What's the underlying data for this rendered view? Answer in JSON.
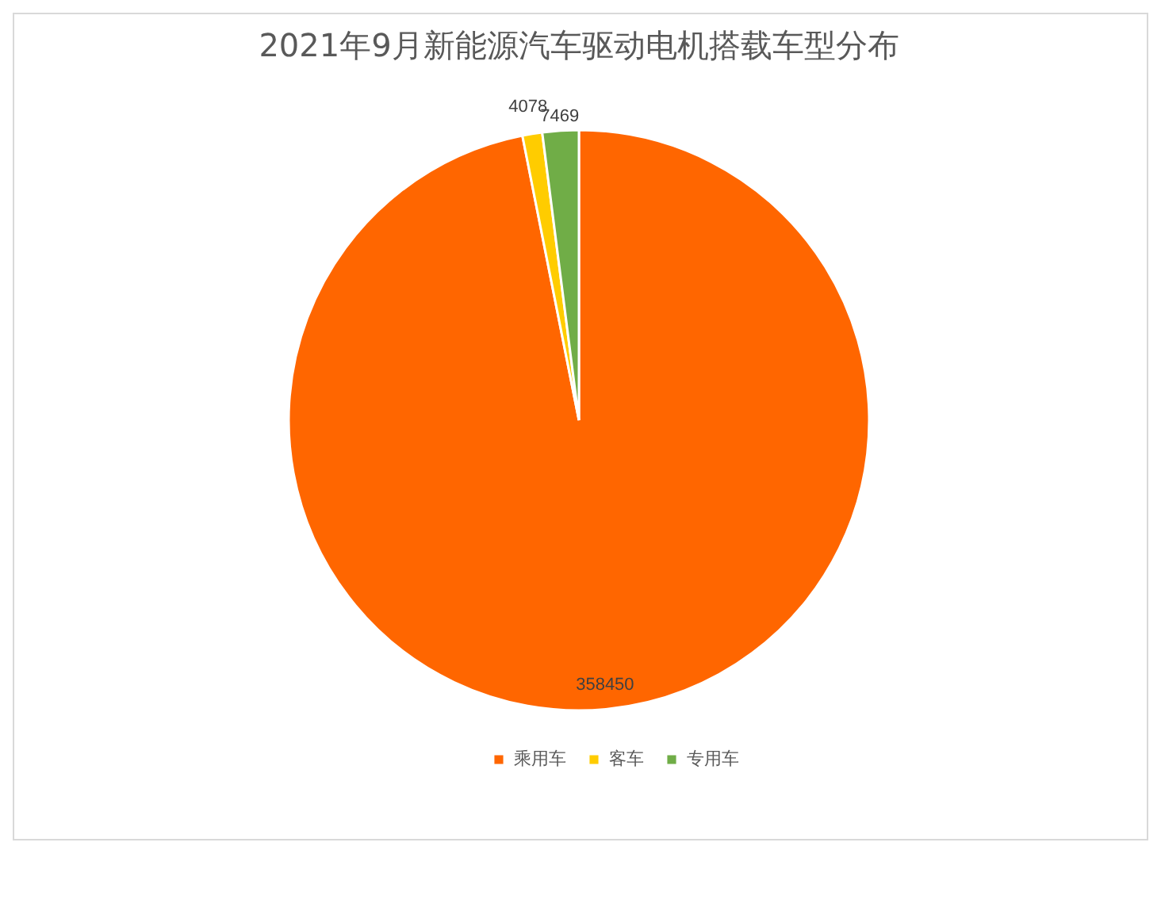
{
  "chart_data": {
    "type": "pie",
    "title": "2021年9月新能源汽车驱动电机搭载车型分布",
    "categories": [
      "乘用车",
      "客车",
      "专用车"
    ],
    "values": [
      358450,
      4078,
      7469
    ],
    "colors": [
      "#ff6600",
      "#ffcc00",
      "#70ad47"
    ],
    "data_labels": true,
    "legend": "bottom"
  }
}
